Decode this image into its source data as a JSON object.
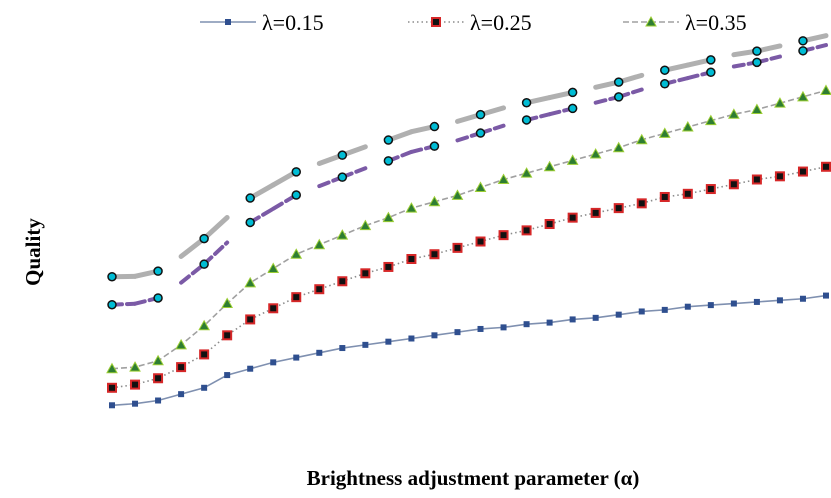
{
  "chart_data": {
    "type": "line",
    "title": "",
    "xlabel": "Brightness adjustment parameter (α)",
    "ylabel": "Quality",
    "x": [
      1,
      2,
      3,
      4,
      5,
      6,
      7,
      8,
      9,
      10,
      11,
      12,
      13,
      14,
      15,
      16,
      17,
      18,
      19,
      20,
      21,
      22,
      23,
      24,
      25,
      26,
      27,
      28,
      29,
      30,
      31,
      32
    ],
    "xlim": [
      0.5,
      32.5
    ],
    "ylim": [
      0,
      100
    ],
    "grid": false,
    "axes_visible": false,
    "legend_position": "top",
    "series": [
      {
        "name": "λ=0.15",
        "color": "#7f90b0",
        "marker_color": "#2f4f8f",
        "marker": "square",
        "dash": "solid",
        "values": [
          4,
          4.5,
          5.5,
          7.5,
          9.5,
          13.5,
          15.5,
          17.5,
          19,
          20.5,
          22,
          23,
          24,
          25,
          26,
          27,
          28,
          28.5,
          29.5,
          30,
          31,
          31.5,
          32.5,
          33.5,
          34,
          35,
          35.5,
          36,
          36.5,
          37,
          37.5,
          38.5
        ]
      },
      {
        "name": "λ=0.25",
        "color": "#8c8c8c",
        "marker_color": "#d62728",
        "marker": "square",
        "dash": "dotted",
        "values": [
          9.5,
          10.5,
          12.5,
          16,
          20,
          26,
          31,
          34.5,
          38,
          40.5,
          43,
          45.5,
          47.5,
          50,
          51.5,
          53.5,
          55.5,
          57.5,
          59,
          61,
          63,
          64.5,
          66,
          67.5,
          69.5,
          70.5,
          72,
          73.5,
          75,
          76,
          77.5,
          79
        ]
      },
      {
        "name": "λ=0.35",
        "color": "#a0a0a0",
        "marker_color": "#2e7d32",
        "marker": "triangle",
        "dash": "dashed",
        "values": [
          15.5,
          16,
          18,
          23,
          29,
          36,
          42.5,
          47,
          51.5,
          54.5,
          57.5,
          60.5,
          63,
          66,
          68,
          70,
          72.5,
          75,
          77,
          79,
          81,
          83,
          85,
          87.5,
          89.5,
          91.5,
          93.5,
          95.5,
          97,
          99,
          101,
          103
        ]
      }
    ]
  }
}
